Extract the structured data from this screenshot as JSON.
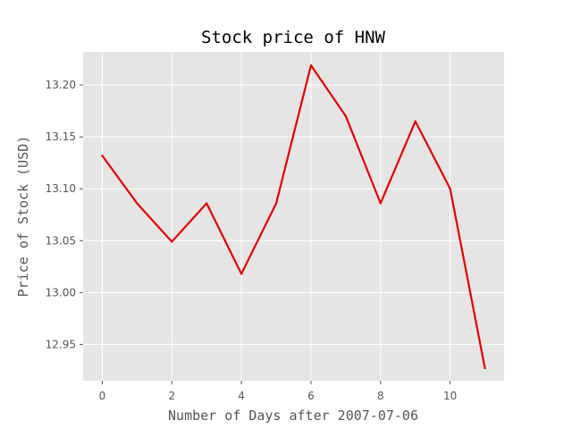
{
  "chart_data": {
    "type": "line",
    "title": "Stock price of HNW",
    "xlabel": "Number of Days after 2007-07-06",
    "ylabel": "Price of Stock (USD)",
    "xlim": [
      -0.55,
      11.55
    ],
    "ylim": [
      12.915,
      13.232
    ],
    "x_ticks": [
      0,
      2,
      4,
      6,
      8,
      10
    ],
    "y_ticks": [
      12.95,
      13.0,
      13.05,
      13.1,
      13.15,
      13.2
    ],
    "y_tick_labels": [
      "12.95",
      "13.00",
      "13.05",
      "13.10",
      "13.15",
      "13.20"
    ],
    "grid": true,
    "background": "#e5e5e5",
    "grid_color": "#ffffff",
    "series": [
      {
        "color": "#e00000",
        "x": [
          0,
          1,
          2,
          3,
          4,
          5,
          6,
          7,
          8,
          9,
          10,
          11
        ],
        "y": [
          13.132,
          13.086,
          13.049,
          13.086,
          13.018,
          13.086,
          13.219,
          13.17,
          13.086,
          13.165,
          13.1,
          12.927
        ]
      }
    ]
  }
}
